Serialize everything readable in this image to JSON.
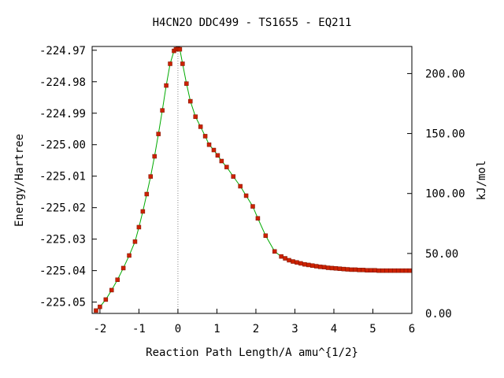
{
  "chart_data": {
    "type": "line",
    "title": "H4CN2O   DDC499 - TS1655 - EQ211",
    "xlabel": "Reaction Path Length/A amu^{1/2}",
    "ylabel": "Energy/Hartree",
    "y2label": "kJ/mol",
    "xlim": [
      -2.2,
      6.0
    ],
    "ylim": [
      -225.0536,
      -224.9688
    ],
    "y2lim": [
      0,
      222.6
    ],
    "x_ticks": [
      "-2",
      "-1",
      "0",
      "1",
      "2",
      "3",
      "4",
      "5",
      "6"
    ],
    "y_ticks": [
      "-224.97",
      "-224.98",
      "-224.99",
      "-225.00",
      "-225.01",
      "-225.02",
      "-225.03",
      "-225.04",
      "-225.05"
    ],
    "y2_ticks": [
      "0.00",
      "50.00",
      "100.00",
      "150.00",
      "200.00"
    ],
    "ts_marker_x": 0,
    "colors": {
      "line": "#00aa00",
      "marker": "#cc2200",
      "ts_line": "#888888"
    },
    "series": [
      {
        "points": [
          [
            -2.1,
            -225.0527
          ],
          [
            -2.0,
            -225.0515
          ],
          [
            -1.85,
            -225.0492
          ],
          [
            -1.7,
            -225.0462
          ],
          [
            -1.55,
            -225.0429
          ],
          [
            -1.4,
            -225.0392
          ],
          [
            -1.25,
            -225.0352
          ],
          [
            -1.1,
            -225.0308
          ],
          [
            -1.0,
            -225.0262
          ],
          [
            -0.9,
            -225.0212
          ],
          [
            -0.8,
            -225.0157
          ],
          [
            -0.7,
            -225.0101
          ],
          [
            -0.6,
            -225.0037
          ],
          [
            -0.5,
            -224.9966
          ],
          [
            -0.4,
            -224.9891
          ],
          [
            -0.3,
            -224.9812
          ],
          [
            -0.2,
            -224.9743
          ],
          [
            -0.1,
            -224.9702
          ],
          [
            -0.05,
            -224.9697
          ],
          [
            0.0,
            -224.9696
          ],
          [
            0.05,
            -224.9697
          ],
          [
            0.12,
            -224.9743
          ],
          [
            0.22,
            -224.9806
          ],
          [
            0.32,
            -224.9862
          ],
          [
            0.45,
            -224.9911
          ],
          [
            0.58,
            -224.9943
          ],
          [
            0.7,
            -224.9973
          ],
          [
            0.8,
            -225.0
          ],
          [
            0.92,
            -225.0017
          ],
          [
            1.02,
            -225.0034
          ],
          [
            1.12,
            -225.0052
          ],
          [
            1.25,
            -225.0071
          ],
          [
            1.42,
            -225.0101
          ],
          [
            1.6,
            -225.0132
          ],
          [
            1.75,
            -225.0162
          ],
          [
            1.92,
            -225.0196
          ],
          [
            2.05,
            -225.0234
          ],
          [
            2.25,
            -225.0289
          ],
          [
            2.48,
            -225.0339
          ],
          [
            2.65,
            -225.0355
          ],
          [
            2.75,
            -225.0361
          ],
          [
            2.85,
            -225.0367
          ],
          [
            2.95,
            -225.0371
          ],
          [
            3.05,
            -225.0374
          ],
          [
            3.15,
            -225.0377
          ],
          [
            3.25,
            -225.038
          ],
          [
            3.35,
            -225.0382
          ],
          [
            3.45,
            -225.0384
          ],
          [
            3.55,
            -225.0386
          ],
          [
            3.65,
            -225.0388
          ],
          [
            3.75,
            -225.0389
          ],
          [
            3.85,
            -225.0391
          ],
          [
            3.95,
            -225.0392
          ],
          [
            4.05,
            -225.0393
          ],
          [
            4.15,
            -225.0394
          ],
          [
            4.25,
            -225.0395
          ],
          [
            4.35,
            -225.0396
          ],
          [
            4.45,
            -225.0397
          ],
          [
            4.55,
            -225.0397
          ],
          [
            4.65,
            -225.0398
          ],
          [
            4.75,
            -225.0398
          ],
          [
            4.85,
            -225.0399
          ],
          [
            4.95,
            -225.0399
          ],
          [
            5.05,
            -225.0399
          ],
          [
            5.15,
            -225.04
          ],
          [
            5.25,
            -225.04
          ],
          [
            5.35,
            -225.04
          ],
          [
            5.45,
            -225.04
          ],
          [
            5.55,
            -225.04
          ],
          [
            5.65,
            -225.04
          ],
          [
            5.75,
            -225.04
          ],
          [
            5.85,
            -225.04
          ],
          [
            5.95,
            -225.04
          ]
        ]
      }
    ]
  }
}
